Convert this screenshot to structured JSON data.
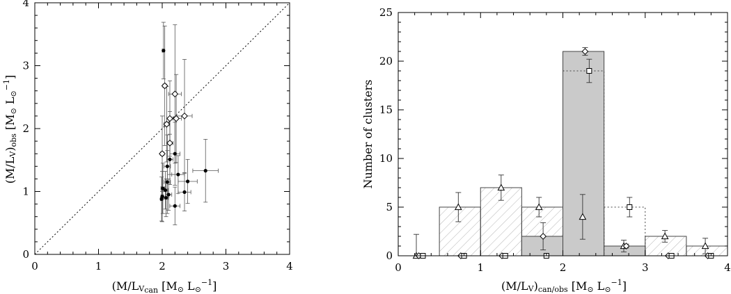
{
  "chart_data": [
    {
      "type": "scatter",
      "xlabel": "(M/L_V)_can [M_⊙ L_⊙^-1]",
      "ylabel": "(M/L_V)_obs [M_⊙ L_⊙^-1]",
      "xlim": [
        0,
        4
      ],
      "ylim": [
        0,
        4
      ],
      "xticks": [
        "0",
        "1",
        "2",
        "3",
        "4"
      ],
      "yticks": [
        "0",
        "1",
        "2",
        "3",
        "4"
      ],
      "reference_line": "y = x (dotted)",
      "series": [
        {
          "marker": "filled-circle",
          "points": [
            {
              "x": 2.02,
              "y": 3.24,
              "yerr": 0.45,
              "xerr": 0.02
            },
            {
              "x": 2.2,
              "y": 1.6,
              "yerr": 0.5,
              "xerr": 0.08
            },
            {
              "x": 2.12,
              "y": 1.51,
              "yerr": 0.4,
              "xerr": 0.05
            },
            {
              "x": 2.08,
              "y": 1.4,
              "yerr": 0.5,
              "xerr": 0.05
            },
            {
              "x": 2.25,
              "y": 1.27,
              "yerr": 0.3,
              "xerr": 0.1
            },
            {
              "x": 2.68,
              "y": 1.33,
              "yerr": 0.5,
              "xerr": 0.2
            },
            {
              "x": 2.4,
              "y": 1.16,
              "yerr": 0.35,
              "xerr": 0.15
            },
            {
              "x": 2.08,
              "y": 1.15,
              "yerr": 0.5,
              "xerr": 0.05
            },
            {
              "x": 2.01,
              "y": 1.05,
              "yerr": 0.4,
              "xerr": 0.03
            },
            {
              "x": 2.05,
              "y": 1.02,
              "yerr": 0.3,
              "xerr": 0.04
            },
            {
              "x": 2.35,
              "y": 0.99,
              "yerr": 0.3,
              "xerr": 0.1
            },
            {
              "x": 2.1,
              "y": 0.95,
              "yerr": 0.25,
              "xerr": 0.05
            },
            {
              "x": 2.0,
              "y": 0.92,
              "yerr": 0.4,
              "xerr": 0.02
            },
            {
              "x": 1.99,
              "y": 0.88,
              "yerr": 0.35,
              "xerr": 0.02
            },
            {
              "x": 2.06,
              "y": 0.9,
              "yerr": 0.3,
              "xerr": 0.03
            },
            {
              "x": 2.2,
              "y": 0.77,
              "yerr": 0.3,
              "xerr": 0.08
            }
          ]
        },
        {
          "marker": "open-diamond",
          "points": [
            {
              "x": 2.04,
              "y": 2.68,
              "yerr": 0.95,
              "xerr": 0.03
            },
            {
              "x": 2.2,
              "y": 2.55,
              "yerr": 1.1,
              "xerr": 0.1
            },
            {
              "x": 2.35,
              "y": 2.2,
              "yerr": 0.9,
              "xerr": 0.12
            },
            {
              "x": 2.12,
              "y": 2.16,
              "yerr": 0.6,
              "xerr": 0.05
            },
            {
              "x": 2.22,
              "y": 2.16,
              "yerr": 0.7,
              "xerr": 0.08
            },
            {
              "x": 2.07,
              "y": 2.07,
              "yerr": 0.6,
              "xerr": 0.04
            },
            {
              "x": 2.12,
              "y": 1.77,
              "yerr": 0.5,
              "xerr": 0.05
            },
            {
              "x": 2.0,
              "y": 1.6,
              "yerr": 0.6,
              "xerr": 0.03
            }
          ]
        }
      ]
    },
    {
      "type": "bar",
      "xlabel": "(M/L_V)_can/obs [M_⊙ L_⊙^-1]",
      "ylabel": "Number of clusters",
      "xlim": [
        0,
        4
      ],
      "ylim": [
        0,
        25
      ],
      "xticks": [
        "0",
        "1",
        "2",
        "3",
        "4"
      ],
      "yticks": [
        "0",
        "5",
        "10",
        "15",
        "20",
        "25"
      ],
      "bin_edges": [
        0,
        0.5,
        1.0,
        1.5,
        2.0,
        2.5,
        3.0,
        3.5,
        4.0
      ],
      "series": [
        {
          "style": "hatched-solid",
          "marker": "open-triangle",
          "values": [
            0,
            5,
            7,
            5,
            4,
            1,
            2,
            1
          ],
          "point_x": [
            0.22,
            0.73,
            1.25,
            1.71,
            2.24,
            2.74,
            3.24,
            3.73
          ],
          "point_err": [
            2.2,
            1.5,
            1.3,
            1.0,
            2.3,
            0.6,
            0.6,
            0.8
          ]
        },
        {
          "style": "gray-filled-solid",
          "marker": "open-diamond",
          "values": [
            0,
            0,
            0,
            2,
            21,
            1,
            0,
            0
          ],
          "point_x": [
            0.25,
            0.76,
            1.26,
            1.76,
            2.27,
            2.77,
            3.28,
            3.76
          ],
          "point_err": [
            0,
            0,
            0,
            1.4,
            0.4,
            0.2,
            0,
            0
          ]
        },
        {
          "style": "dotted-outline",
          "marker": "open-square",
          "values": [
            0,
            0,
            0,
            0,
            19,
            5,
            0,
            0
          ],
          "point_x": [
            0.3,
            0.8,
            1.3,
            1.8,
            2.32,
            2.81,
            3.32,
            3.8
          ],
          "point_err": [
            0,
            0,
            0,
            0,
            1.2,
            1.0,
            0,
            0
          ]
        }
      ]
    }
  ]
}
